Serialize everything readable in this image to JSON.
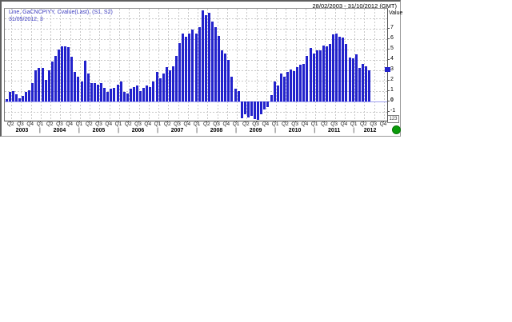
{
  "header": {
    "date_range": "28/02/2003 - 31/10/2012 (GMT)"
  },
  "legend": {
    "line1": "Line, GaCNCPIYY, Cvalue(Last), (S1, S2)",
    "line2": "31/05/2012, 3"
  },
  "y_axis": {
    "title": "Value",
    "ticks": [
      "7",
      "6",
      "5",
      "4",
      "3",
      "2",
      "1",
      "0",
      "-1"
    ],
    "bold_tick": "0",
    "last_value": 3,
    "last_value_marker_color": "#2222cc"
  },
  "x_axis": {
    "quarter_labels": [
      "Q2",
      "Q3",
      "Q4",
      "Q1",
      "Q2",
      "Q3",
      "Q4",
      "Q1",
      "Q2",
      "Q3",
      "Q4",
      "Q1",
      "Q2",
      "Q3",
      "Q4",
      "Q1",
      "Q2",
      "Q3",
      "Q4",
      "Q1",
      "Q2",
      "Q3",
      "Q4",
      "Q1",
      "Q2",
      "Q3",
      "Q4",
      "Q1",
      "Q2",
      "Q3",
      "Q4",
      "Q1",
      "Q2",
      "Q3",
      "Q4",
      "Q1",
      "Q2",
      "Q3",
      "Q4"
    ],
    "years": [
      "2003",
      "2004",
      "2005",
      "2006",
      "2007",
      "2008",
      "2009",
      "2010",
      "2011",
      "2012"
    ],
    "year_separator": "|"
  },
  "controls": {
    "axis_button_label": "123",
    "status_dot_color": "#0a9b0a"
  },
  "chart_data": {
    "type": "bar",
    "series_name": "GaCNCPIYY",
    "statistic": "Cvalue(Last)",
    "frequency": "monthly",
    "start_month": "2003-02",
    "end_month": "2012-05",
    "x_range_label": "28/02/2003 - 31/10/2012 (GMT)",
    "last_point": {
      "date": "31/05/2012",
      "value": 3
    },
    "values": [
      0.2,
      0.9,
      1.0,
      0.7,
      0.3,
      0.5,
      0.9,
      1.1,
      1.8,
      3.0,
      3.2,
      3.2,
      2.1,
      3.0,
      3.8,
      4.4,
      5.0,
      5.3,
      5.3,
      5.2,
      4.3,
      2.8,
      2.4,
      1.9,
      3.9,
      2.7,
      1.8,
      1.8,
      1.6,
      1.8,
      1.3,
      0.9,
      1.2,
      1.3,
      1.6,
      1.9,
      0.9,
      0.8,
      1.2,
      1.4,
      1.5,
      1.0,
      1.3,
      1.5,
      1.4,
      1.9,
      2.8,
      2.2,
      2.7,
      3.3,
      3.0,
      3.4,
      4.4,
      5.6,
      6.5,
      6.2,
      6.5,
      6.9,
      6.5,
      7.1,
      8.7,
      8.3,
      8.5,
      7.7,
      7.1,
      6.3,
      4.9,
      4.6,
      4.0,
      2.4,
      1.2,
      1.0,
      -1.6,
      -1.2,
      -1.5,
      -1.4,
      -1.7,
      -1.8,
      -1.2,
      -0.8,
      -0.5,
      0.6,
      1.9,
      1.5,
      2.7,
      2.4,
      2.8,
      3.1,
      2.9,
      3.3,
      3.5,
      3.6,
      4.4,
      5.1,
      4.6,
      4.9,
      4.9,
      5.4,
      5.3,
      5.5,
      6.4,
      6.5,
      6.2,
      6.1,
      5.5,
      4.2,
      4.1,
      4.5,
      3.2,
      3.6,
      3.4,
      3.0
    ],
    "ylim": [
      -1.72,
      8.93
    ],
    "grid": true,
    "bar_color": "#2222cc",
    "zero_line_color": "#9f9ff0",
    "gridline_color": "#c8c8c8"
  }
}
